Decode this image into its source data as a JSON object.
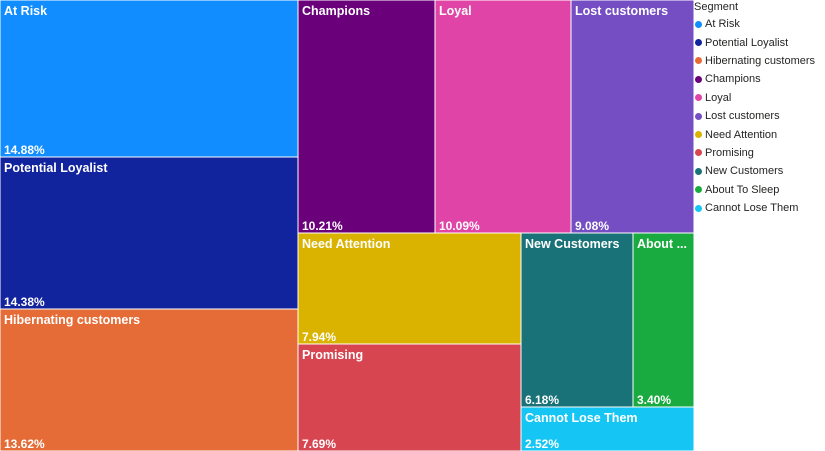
{
  "chart_data": {
    "type": "treemap",
    "legend_title": "Segment",
    "legend_position": "right",
    "segments": [
      {
        "name": "At Risk",
        "label": "At Risk",
        "value": 14.88,
        "value_label": "14.88%",
        "color": "#118DFF"
      },
      {
        "name": "Potential Loyalist",
        "label": "Potential Loyalist",
        "value": 14.38,
        "value_label": "14.38%",
        "color": "#12239E"
      },
      {
        "name": "Hibernating customers",
        "label": "Hibernating customers",
        "value": 13.62,
        "value_label": "13.62%",
        "color": "#E66C37"
      },
      {
        "name": "Champions",
        "label": "Champions",
        "value": 10.21,
        "value_label": "10.21%",
        "color": "#6B007B"
      },
      {
        "name": "Loyal",
        "label": "Loyal",
        "value": 10.09,
        "value_label": "10.09%",
        "color": "#E044A7"
      },
      {
        "name": "Lost customers",
        "label": "Lost customers",
        "value": 9.08,
        "value_label": "9.08%",
        "color": "#744EC2"
      },
      {
        "name": "Need Attention",
        "label": "Need Attention",
        "value": 7.94,
        "value_label": "7.94%",
        "color": "#D9B300"
      },
      {
        "name": "Promising",
        "label": "Promising",
        "value": 7.69,
        "value_label": "7.69%",
        "color": "#D64550"
      },
      {
        "name": "New Customers",
        "label": "New Customers",
        "value": 6.18,
        "value_label": "6.18%",
        "color": "#197278"
      },
      {
        "name": "About To Sleep",
        "label": "About ...",
        "value": 3.4,
        "value_label": "3.40%",
        "color": "#1AAB40"
      },
      {
        "name": "Cannot Lose Them",
        "label": "Cannot Lose Them",
        "value": 2.52,
        "value_label": "2.52%",
        "color": "#15C6F4"
      }
    ]
  }
}
